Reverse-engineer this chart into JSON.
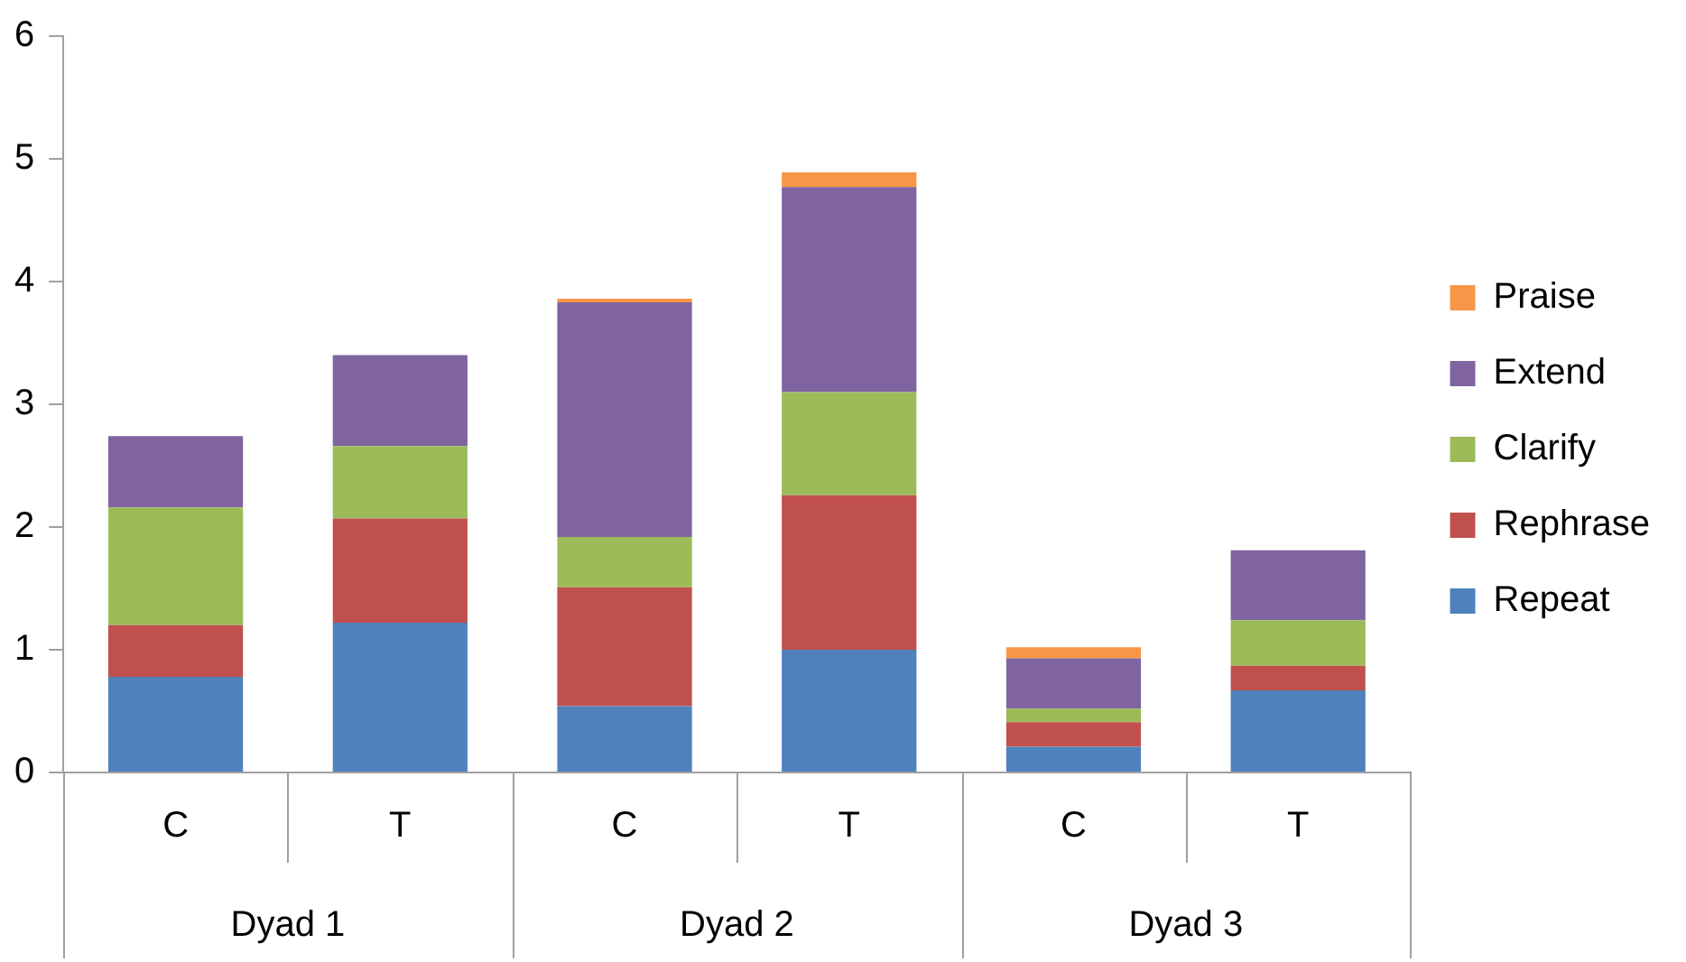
{
  "chart_data": {
    "type": "bar",
    "stacked": true,
    "categories": [
      "C",
      "T",
      "C",
      "T",
      "C",
      "T"
    ],
    "annotations": [
      "Dyad 1",
      "Dyad 2",
      "Dyad 3"
    ],
    "series": [
      {
        "name": "Repeat",
        "color": "#4f81bd",
        "values": [
          0.78,
          1.22,
          0.54,
          1.0,
          0.21,
          0.67
        ]
      },
      {
        "name": "Rephrase",
        "color": "#c0504d",
        "values": [
          0.42,
          0.85,
          0.97,
          1.26,
          0.2,
          0.2
        ]
      },
      {
        "name": "Clarify",
        "color": "#9bbb59",
        "values": [
          0.96,
          0.59,
          0.41,
          0.84,
          0.11,
          0.37
        ]
      },
      {
        "name": "Extend",
        "color": "#8064a2",
        "values": [
          0.58,
          0.74,
          1.91,
          1.67,
          0.41,
          0.57
        ]
      },
      {
        "name": "Praise",
        "color": "#f79646",
        "values": [
          0,
          0,
          0.03,
          0.12,
          0.09,
          0
        ]
      }
    ],
    "ylim": [
      0,
      6
    ],
    "yticks": [
      0,
      1,
      2,
      3,
      4,
      5,
      6
    ],
    "grid": false,
    "legend": "right"
  }
}
